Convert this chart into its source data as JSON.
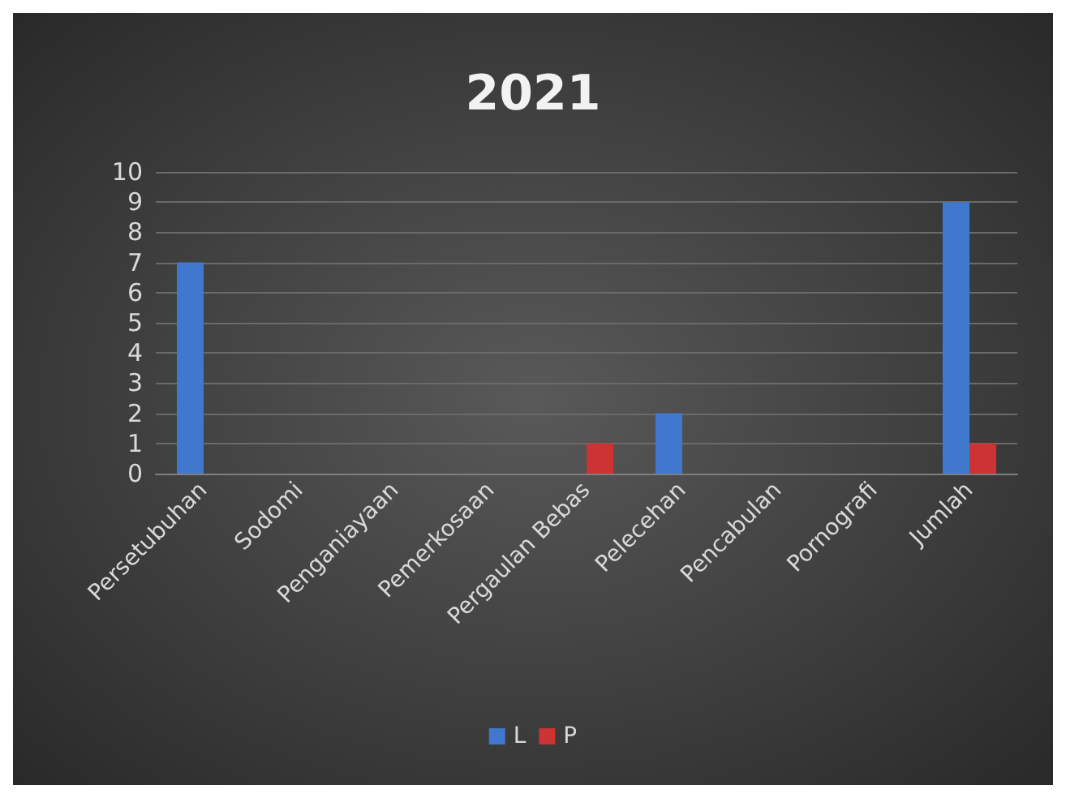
{
  "chart_data": {
    "type": "bar",
    "title": "2021",
    "categories": [
      "Persetubuhan",
      "Sodomi",
      "Penganiayaan",
      "Pemerkosaan",
      "Pergaulan Bebas",
      "Pelecehan",
      "Pencabulan",
      "Pornografi",
      "Jumlah"
    ],
    "series": [
      {
        "name": "L",
        "color": "#3f78cc",
        "values": [
          7,
          0,
          0,
          0,
          0,
          2,
          0,
          0,
          9
        ]
      },
      {
        "name": "P",
        "color": "#cc3333",
        "values": [
          0,
          0,
          0,
          0,
          1,
          0,
          0,
          0,
          1
        ]
      }
    ],
    "ylim": [
      0,
      10
    ],
    "yticks": [
      0,
      1,
      2,
      3,
      4,
      5,
      6,
      7,
      8,
      9,
      10
    ],
    "grid": "y",
    "legend": "bottom"
  }
}
